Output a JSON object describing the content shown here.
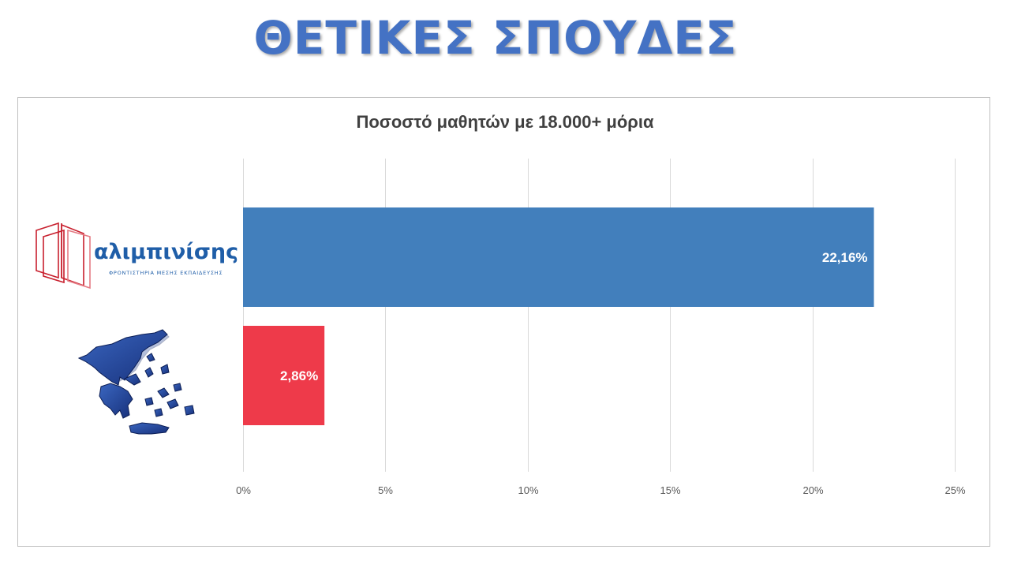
{
  "page_title": "ΘΕΤΙΚΕΣ ΣΠΟΥΔΕΣ",
  "colors": {
    "accent": "#4472c4",
    "series_blue": "#427fbc",
    "series_red": "#ee3a4a",
    "logo_red": "#c8202e",
    "logo_blue": "#1f5ea8"
  },
  "logo": {
    "wordmark": "αλιμπινίσης",
    "tagline": "ΦΡΟΝΤΙΣΤΗΡΙΑ ΜΕΣΗΣ ΕΚΠΑΙΔΕΥΣΗΣ",
    "icon": "open-book-icon"
  },
  "greece_map": {
    "icon": "greece-map-icon"
  },
  "chart_data": {
    "type": "bar",
    "orientation": "horizontal",
    "title": "Ποσοστό μαθητών με 18.000+ μόρια",
    "categories": [
      "",
      ""
    ],
    "values": [
      22.16,
      2.86
    ],
    "value_labels": [
      "22,16%",
      "2,86%"
    ],
    "bar_colors": [
      "#427fbc",
      "#ee3a4a"
    ],
    "xlim": [
      0,
      25
    ],
    "xticks": [
      0,
      5,
      10,
      15,
      20,
      25
    ],
    "xtick_labels": [
      "0%",
      "5%",
      "10%",
      "15%",
      "20%",
      "25%"
    ],
    "grid": true,
    "legend": "none"
  }
}
